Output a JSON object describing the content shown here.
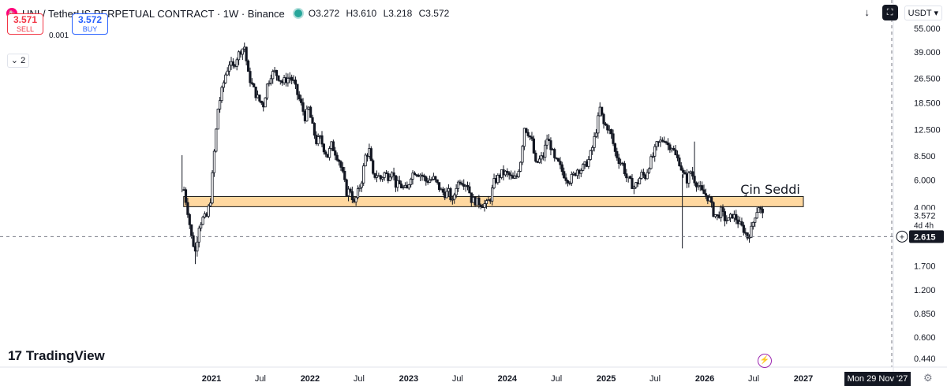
{
  "header": {
    "title": "UNI / TetherUS PERPETUAL CONTRACT · 1W · Binance",
    "symbol_icon": "uniswap-logo-icon",
    "ohlc": {
      "o": "O3.272",
      "h": "H3.610",
      "l": "L3.218",
      "c": "C3.572"
    }
  },
  "trade": {
    "sell_price": "3.571",
    "sell_label": "SELL",
    "spread": "0.001",
    "buy_price": "3.572",
    "buy_label": "BUY"
  },
  "indicators_toggle": "2",
  "toolbar": {
    "currency": "USDT"
  },
  "colors": {
    "zone_fill": "#ffd8a0",
    "zone_stroke": "#1a1a1a",
    "candles": "#131722",
    "accent_blue": "#2962ff",
    "sell_red": "#f23645"
  },
  "logo": {
    "text": "TradingView"
  },
  "cursor_date": "Mon 29 Nov '27",
  "chart_data": {
    "type": "candlestick",
    "scale": "log",
    "y_ticks": [
      "55.000",
      "39.000",
      "26.500",
      "18.500",
      "12.500",
      "8.500",
      "6.000",
      "4.000",
      "2.615",
      "1.700",
      "1.200",
      "0.850",
      "0.600",
      "0.440"
    ],
    "x_ticks": [
      "2021",
      "Jul",
      "2022",
      "Jul",
      "2023",
      "Jul",
      "2024",
      "Jul",
      "2025",
      "Jul",
      "2026",
      "Jul",
      "2027"
    ],
    "last_price": "3.572",
    "countdown": "4d 4h",
    "crosshair_price": "2.615",
    "annotation": "Çin Seddi",
    "zone": {
      "from": 4.05,
      "to": 4.7
    },
    "price_path": [
      [
        "2020-09-21",
        5.2
      ],
      [
        "2020-10-05",
        3.8
      ],
      [
        "2020-10-19",
        2.6
      ],
      [
        "2020-11-02",
        2.1
      ],
      [
        "2020-11-16",
        3.1
      ],
      [
        "2020-11-30",
        3.4
      ],
      [
        "2020-12-14",
        3.5
      ],
      [
        "2020-12-28",
        4.5
      ],
      [
        "2021-01-11",
        9.0
      ],
      [
        "2021-01-25",
        17.0
      ],
      [
        "2021-02-08",
        22.0
      ],
      [
        "2021-02-22",
        28.0
      ],
      [
        "2021-03-08",
        33.0
      ],
      [
        "2021-03-22",
        31.0
      ],
      [
        "2021-04-05",
        36.0
      ],
      [
        "2021-04-19",
        40.0
      ],
      [
        "2021-05-03",
        42.0
      ],
      [
        "2021-05-17",
        28.0
      ],
      [
        "2021-05-31",
        24.0
      ],
      [
        "2021-06-14",
        21.0
      ],
      [
        "2021-06-28",
        19.0
      ],
      [
        "2021-07-12",
        18.0
      ],
      [
        "2021-07-26",
        24.0
      ],
      [
        "2021-08-09",
        28.0
      ],
      [
        "2021-08-23",
        29.0
      ],
      [
        "2021-09-06",
        27.0
      ],
      [
        "2021-09-20",
        25.0
      ],
      [
        "2021-10-04",
        26.0
      ],
      [
        "2021-10-18",
        27.0
      ],
      [
        "2021-11-01",
        25.0
      ],
      [
        "2021-11-15",
        21.0
      ],
      [
        "2021-11-29",
        18.0
      ],
      [
        "2021-12-13",
        15.0
      ],
      [
        "2021-12-27",
        17.0
      ],
      [
        "2022-01-10",
        13.0
      ],
      [
        "2022-01-24",
        10.5
      ],
      [
        "2022-02-07",
        11.0
      ],
      [
        "2022-02-21",
        9.5
      ],
      [
        "2022-03-07",
        8.5
      ],
      [
        "2022-03-21",
        10.0
      ],
      [
        "2022-04-04",
        9.0
      ],
      [
        "2022-04-18",
        8.0
      ],
      [
        "2022-05-02",
        6.5
      ],
      [
        "2022-05-16",
        5.0
      ],
      [
        "2022-05-30",
        5.2
      ],
      [
        "2022-06-13",
        4.2
      ],
      [
        "2022-06-27",
        5.0
      ],
      [
        "2022-07-11",
        6.0
      ],
      [
        "2022-07-25",
        8.5
      ],
      [
        "2022-08-08",
        9.2
      ],
      [
        "2022-08-22",
        6.3
      ],
      [
        "2022-09-05",
        6.5
      ],
      [
        "2022-09-19",
        6.1
      ],
      [
        "2022-10-03",
        6.6
      ],
      [
        "2022-10-17",
        6.3
      ],
      [
        "2022-10-31",
        7.0
      ],
      [
        "2022-11-14",
        5.6
      ],
      [
        "2022-11-28",
        5.6
      ],
      [
        "2022-12-12",
        5.3
      ],
      [
        "2022-12-26",
        5.2
      ],
      [
        "2023-01-09",
        6.4
      ],
      [
        "2023-01-23",
        6.8
      ],
      [
        "2023-02-06",
        6.6
      ],
      [
        "2023-02-20",
        6.4
      ],
      [
        "2023-03-06",
        5.9
      ],
      [
        "2023-03-20",
        6.0
      ],
      [
        "2023-04-03",
        6.1
      ],
      [
        "2023-04-17",
        5.6
      ],
      [
        "2023-05-01",
        5.1
      ],
      [
        "2023-05-15",
        4.9
      ],
      [
        "2023-05-29",
        5.0
      ],
      [
        "2023-06-12",
        4.3
      ],
      [
        "2023-06-26",
        5.5
      ],
      [
        "2023-07-10",
        6.0
      ],
      [
        "2023-07-24",
        5.8
      ],
      [
        "2023-08-07",
        5.6
      ],
      [
        "2023-08-21",
        4.5
      ],
      [
        "2023-09-04",
        4.4
      ],
      [
        "2023-09-18",
        4.3
      ],
      [
        "2023-10-02",
        4.2
      ],
      [
        "2023-10-16",
        4.2
      ],
      [
        "2023-10-30",
        4.6
      ],
      [
        "2023-11-13",
        5.8
      ],
      [
        "2023-11-27",
        6.2
      ],
      [
        "2023-12-11",
        6.6
      ],
      [
        "2023-12-25",
        6.6
      ],
      [
        "2024-01-08",
        6.4
      ],
      [
        "2024-01-22",
        6.0
      ],
      [
        "2024-02-05",
        6.3
      ],
      [
        "2024-02-19",
        8.0
      ],
      [
        "2024-03-04",
        13.0
      ],
      [
        "2024-03-18",
        12.0
      ],
      [
        "2024-04-01",
        10.5
      ],
      [
        "2024-04-15",
        7.5
      ],
      [
        "2024-04-29",
        8.0
      ],
      [
        "2024-05-13",
        8.5
      ],
      [
        "2024-05-27",
        11.0
      ],
      [
        "2024-06-10",
        9.8
      ],
      [
        "2024-06-24",
        8.0
      ],
      [
        "2024-07-08",
        7.6
      ],
      [
        "2024-07-22",
        6.8
      ],
      [
        "2024-08-05",
        6.2
      ],
      [
        "2024-08-19",
        6.0
      ],
      [
        "2024-09-02",
        6.4
      ],
      [
        "2024-09-16",
        7.0
      ],
      [
        "2024-09-30",
        7.0
      ],
      [
        "2024-10-14",
        7.4
      ],
      [
        "2024-10-28",
        8.0
      ],
      [
        "2024-11-11",
        9.6
      ],
      [
        "2024-11-25",
        12.5
      ],
      [
        "2024-12-09",
        17.0
      ],
      [
        "2024-12-23",
        13.5
      ],
      [
        "2025-01-06",
        13.0
      ],
      [
        "2025-01-20",
        11.5
      ],
      [
        "2025-02-03",
        9.0
      ],
      [
        "2025-02-17",
        8.0
      ],
      [
        "2025-03-03",
        7.5
      ],
      [
        "2025-03-17",
        6.2
      ],
      [
        "2025-03-31",
        5.8
      ],
      [
        "2025-04-14",
        5.4
      ],
      [
        "2025-04-28",
        5.8
      ],
      [
        "2025-05-12",
        6.5
      ],
      [
        "2025-05-26",
        6.3
      ],
      [
        "2025-06-09",
        7.5
      ],
      [
        "2025-06-23",
        8.5
      ],
      [
        "2025-07-07",
        10.0
      ],
      [
        "2025-07-21",
        10.5
      ],
      [
        "2025-08-04",
        11.0
      ],
      [
        "2025-08-18",
        10.0
      ],
      [
        "2025-09-01",
        9.8
      ],
      [
        "2025-09-15",
        8.5
      ],
      [
        "2025-09-29",
        7.8
      ],
      [
        "2025-10-13",
        6.5
      ],
      [
        "2025-10-27",
        6.0
      ],
      [
        "2025-11-10",
        6.8
      ],
      [
        "2025-11-24",
        6.0
      ],
      [
        "2025-12-08",
        5.5
      ],
      [
        "2025-12-22",
        5.0
      ],
      [
        "2026-01-05",
        4.8
      ],
      [
        "2026-01-19",
        4.5
      ],
      [
        "2026-02-02",
        3.7
      ],
      [
        "2026-02-16",
        3.5
      ],
      [
        "2026-03-02",
        3.8
      ],
      [
        "2026-03-16",
        3.4
      ],
      [
        "2026-03-30",
        3.3
      ],
      [
        "2026-04-13",
        3.6
      ],
      [
        "2026-04-27",
        3.4
      ],
      [
        "2026-05-11",
        3.1
      ],
      [
        "2026-05-25",
        2.9
      ],
      [
        "2026-06-08",
        2.6
      ],
      [
        "2026-06-22",
        2.9
      ],
      [
        "2026-07-06",
        3.6
      ],
      [
        "2026-07-20",
        4.1
      ],
      [
        "2026-08-03",
        3.572
      ]
    ]
  }
}
